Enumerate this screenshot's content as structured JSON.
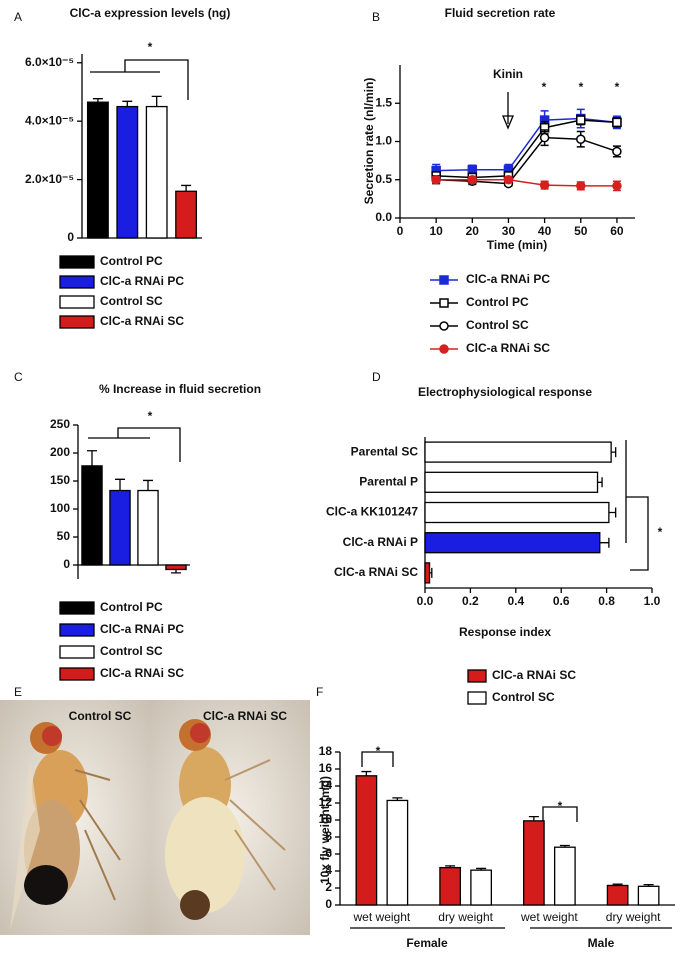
{
  "chart_data": [
    {
      "type": "bar",
      "panel": "A",
      "title": "ClC-a expression levels (ng)",
      "categories": [
        null
      ],
      "series": [
        {
          "name": "Control PC",
          "color": "#000000",
          "values": [
            4.65e-05
          ],
          "errors": [
            1.2e-06
          ]
        },
        {
          "name": "ClC-a RNAi PC",
          "color": "#1a1ee0",
          "values": [
            4.5e-05
          ],
          "errors": [
            1.8e-06
          ]
        },
        {
          "name": "Control SC",
          "color": "#ffffff",
          "values": [
            4.5e-05
          ],
          "errors": [
            3.5e-06
          ]
        },
        {
          "name": "ClC-a RNAi SC",
          "color": "#d41c1c",
          "values": [
            1.6e-05
          ],
          "errors": [
            2e-06
          ]
        }
      ],
      "ylim": [
        0,
        6.3e-05
      ],
      "yticks": [
        0,
        {
          "value": 2e-05,
          "label": "2.0×10⁻⁵"
        },
        {
          "value": 4e-05,
          "label": "4.0×10⁻⁵"
        },
        {
          "value": 6e-05,
          "label": "6.0×10⁻⁵"
        }
      ],
      "annotations": [
        "*"
      ]
    },
    {
      "type": "line",
      "panel": "B",
      "title": "Fluid secretion rate",
      "x_label": "Time (min)",
      "y_label": "Secretion rate (nl/min)",
      "x": [
        10,
        20,
        30,
        40,
        50,
        60
      ],
      "series": [
        {
          "name": "ClC-a RNAi PC",
          "color": "#1a2bd6",
          "marker": "square",
          "values": [
            0.62,
            0.63,
            0.63,
            1.28,
            1.3,
            1.25
          ],
          "errors": [
            0.08,
            0.06,
            0.07,
            0.12,
            0.12,
            0.08
          ]
        },
        {
          "name": "Control PC",
          "color": "#000000",
          "marker": "square-open",
          "values": [
            0.55,
            0.53,
            0.55,
            1.18,
            1.28,
            1.25
          ],
          "errors": [
            0.05,
            0.05,
            0.05,
            0.08,
            0.06,
            0.06
          ]
        },
        {
          "name": "Control SC",
          "color": "#000000",
          "marker": "circle-open",
          "values": [
            0.5,
            0.48,
            0.45,
            1.05,
            1.03,
            0.87
          ],
          "errors": [
            0.05,
            0.04,
            0.03,
            0.1,
            0.1,
            0.07
          ]
        },
        {
          "name": "ClC-a RNAi SC",
          "color": "#d62020",
          "marker": "circle",
          "values": [
            0.5,
            0.5,
            0.5,
            0.43,
            0.42,
            0.42
          ],
          "errors": [
            0.04,
            0.04,
            0.04,
            0.05,
            0.05,
            0.06
          ]
        }
      ],
      "xlim": [
        0,
        65
      ],
      "xticks": [
        0,
        10,
        20,
        30,
        40,
        50,
        60
      ],
      "ylim": [
        0,
        2.0
      ],
      "yticks": [
        {
          "value": 0,
          "label": "0.0"
        },
        0.5,
        {
          "value": 1,
          "label": "1.0"
        },
        1.5
      ],
      "annotations": [
        "Kinin",
        "*",
        "*",
        "*"
      ]
    },
    {
      "type": "bar",
      "panel": "C",
      "title": "% Increase in fluid secretion",
      "categories": [
        null
      ],
      "series": [
        {
          "name": "Control PC",
          "color": "#000000",
          "values": [
            177
          ],
          "errors": [
            27
          ]
        },
        {
          "name": "ClC-a RNAi PC",
          "color": "#1a1ee0",
          "values": [
            133
          ],
          "errors": [
            20
          ]
        },
        {
          "name": "Control SC",
          "color": "#ffffff",
          "values": [
            133
          ],
          "errors": [
            18
          ]
        },
        {
          "name": "ClC-a RNAi SC",
          "color": "#d41c1c",
          "values": [
            -8
          ],
          "errors": [
            6
          ]
        }
      ],
      "ylim": [
        -25,
        250
      ],
      "yticks": [
        0,
        50,
        100,
        150,
        200,
        250
      ],
      "annotations": [
        "*"
      ]
    },
    {
      "type": "hbar",
      "panel": "D",
      "title": "Electrophysiological response",
      "x_label": "Response index",
      "categories": [
        "Parental SC",
        "Parental P",
        "ClC-a KK101247",
        "ClC-a RNAi P",
        "ClC-a RNAi SC"
      ],
      "values": [
        0.82,
        0.76,
        0.81,
        0.77,
        0.02
      ],
      "errors": [
        0.02,
        0.02,
        0.03,
        0.04,
        0.01
      ],
      "colors": [
        "#ffffff",
        "#ffffff",
        "#ffffff",
        "#1a1ee0",
        "#d41c1c"
      ],
      "xlim": [
        0,
        1
      ],
      "xticks": [
        {
          "value": 0,
          "label": "0.0"
        },
        0.2,
        0.4,
        0.6,
        0.8,
        {
          "value": 1,
          "label": "1.0"
        }
      ],
      "annotations": [
        "*"
      ]
    },
    {
      "type": "image",
      "panel": "E",
      "labels": [
        "Control SC",
        "ClC-a RNAi SC"
      ]
    },
    {
      "type": "bar",
      "panel": "F",
      "y_label": "10x fly weight (mg)",
      "categories": [
        "wet weight",
        "dry weight",
        "wet weight",
        "dry weight"
      ],
      "groups": [
        "Female",
        "Male"
      ],
      "series": [
        {
          "name": "ClC-a RNAi SC",
          "color": "#d41c1c",
          "values": [
            15.2,
            4.4,
            9.9,
            2.3
          ],
          "errors": [
            0.5,
            0.2,
            0.5,
            0.15
          ]
        },
        {
          "name": "Control SC",
          "color": "#ffffff",
          "values": [
            12.3,
            4.1,
            6.8,
            2.2
          ],
          "errors": [
            0.3,
            0.2,
            0.2,
            0.2
          ]
        }
      ],
      "ylim": [
        0,
        18
      ],
      "yticks": [
        0,
        2,
        4,
        6,
        8,
        10,
        12,
        14,
        16,
        18
      ],
      "annotations": [
        "*",
        "*"
      ]
    }
  ]
}
